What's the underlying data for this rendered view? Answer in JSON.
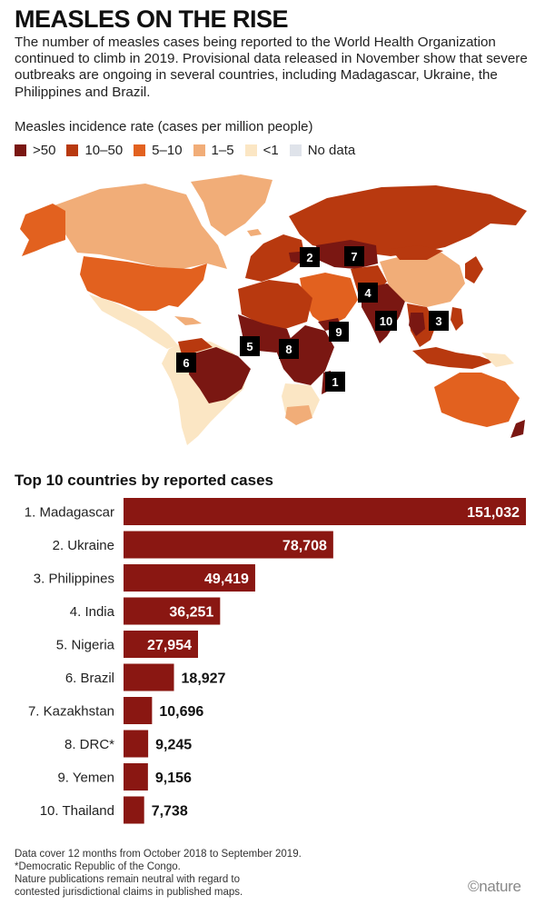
{
  "title": "MEASLES ON THE RISE",
  "subtitle": "The number of measles cases being reported to the World Health Organization continued to climb in 2019. Provisional data released in November show that severe outbreaks are ongoing in several countries, including Madagascar, Ukraine, the Philippines and Brazil.",
  "legend": {
    "title": "Measles incidence rate (cases per million people)",
    "items": [
      {
        "label": ">50",
        "color": "#7a1712"
      },
      {
        "label": "10–50",
        "color": "#b8390f"
      },
      {
        "label": "5–10",
        "color": "#e2611f"
      },
      {
        "label": "1–5",
        "color": "#f1ad78"
      },
      {
        "label": "<1",
        "color": "#fbe6c4"
      },
      {
        "label": "No data",
        "color": "#dfe3ea"
      }
    ]
  },
  "map": {
    "markers": [
      "1",
      "2",
      "3",
      "4",
      "5",
      "6",
      "7",
      "8",
      "9",
      "10"
    ]
  },
  "chart_data": {
    "type": "bar",
    "title": "Top 10 countries by reported cases",
    "categories": [
      "1. Madagascar",
      "2. Ukraine",
      "3. Philippines",
      "4. India",
      "5. Nigeria",
      "6. Brazil",
      "7. Kazakhstan",
      "8. DRC*",
      "9. Yemen",
      "10. Thailand"
    ],
    "values": [
      151032,
      78708,
      49419,
      36251,
      27954,
      18927,
      10696,
      9245,
      9156,
      7738
    ],
    "value_labels": [
      "151,032",
      "78,708",
      "49,419",
      "36,251",
      "27,954",
      "18,927",
      "10,696",
      "9,245",
      "9,156",
      "7,738"
    ],
    "orientation": "horizontal",
    "bar_color": "#8a1712",
    "xlim": [
      0,
      151032
    ]
  },
  "notes": [
    "Data cover 12 months from October 2018 to September 2019.",
    "*Democratic Republic of the Congo.",
    "Nature publications remain neutral with regard to",
    "contested jurisdictional claims in published maps."
  ],
  "logo": "©nature"
}
